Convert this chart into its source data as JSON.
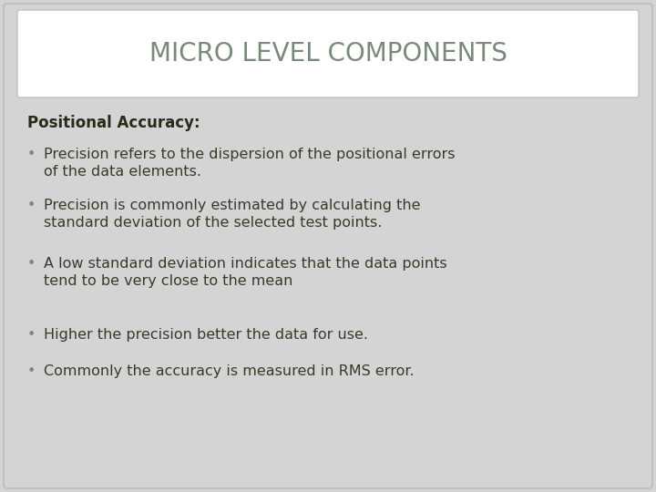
{
  "title": "MICRO LEVEL COMPONENTS",
  "title_color": "#7a8a7a",
  "title_fontsize": 20,
  "background_color": "#d4d4d4",
  "title_box_color": "#ffffff",
  "title_box_edge_color": "#c0c0c0",
  "heading": "Positional Accuracy:",
  "heading_fontsize": 12,
  "heading_color": "#2a2a1a",
  "bullet_color": "#7a8a7a",
  "bullet_fontsize": 11.5,
  "body_color": "#3a3a2a",
  "outer_border_color": "#c0c0c0",
  "bullets": [
    "Precision refers to the dispersion of the positional errors\nof the data elements.",
    "Precision is commonly estimated by calculating the\nstandard deviation of the selected test points.",
    "A low standard deviation indicates that the data points\ntend to be very close to the mean",
    "Higher the precision better the data for use.",
    "Commonly the accuracy is measured in RMS error."
  ],
  "fig_width": 7.2,
  "fig_height": 5.4,
  "dpi": 100
}
